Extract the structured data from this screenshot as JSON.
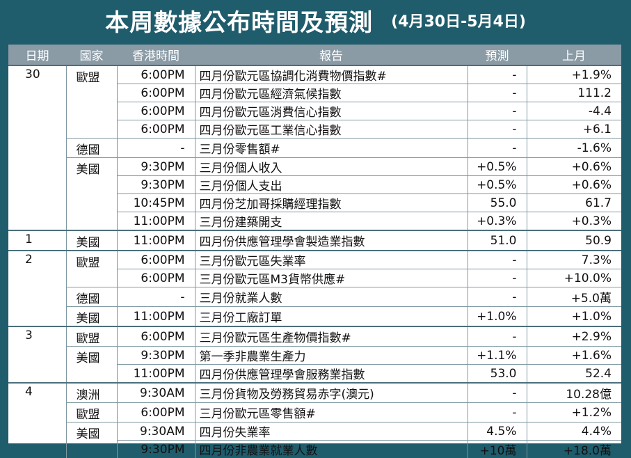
{
  "header": {
    "title": "本周數據公布時間及預測",
    "subtitle": "(4月30日-5月4日)"
  },
  "table": {
    "columns": [
      "日期",
      "國家",
      "香港時間",
      "報告",
      "預測",
      "上月"
    ],
    "rows": [
      [
        "30",
        "歐盟",
        "6:00PM",
        "四月份歐元區協調化消費物價指數#",
        "-",
        "+1.9%"
      ],
      [
        null,
        null,
        "6:00PM",
        "四月份歐元區經濟氣候指數",
        "-",
        "111.2"
      ],
      [
        null,
        null,
        "6:00PM",
        "四月份歐元區消費信心指數",
        "-",
        "-4.4"
      ],
      [
        null,
        null,
        "6:00PM",
        "四月份歐元區工業信心指數",
        "-",
        "+6.1"
      ],
      [
        null,
        "德國",
        "-",
        "三月份零售額#",
        "-",
        "-1.6%"
      ],
      [
        null,
        "美國",
        "9:30PM",
        "三月份個人收入",
        "+0.5%",
        "+0.6%"
      ],
      [
        null,
        null,
        "9:30PM",
        "三月份個人支出",
        "+0.5%",
        "+0.6%"
      ],
      [
        null,
        null,
        "10:45PM",
        "四月份芝加哥採購經理指數",
        "55.0",
        "61.7"
      ],
      [
        null,
        null,
        "11:00PM",
        "三月份建築開支",
        "+0.3%",
        "+0.3%"
      ],
      [
        "1",
        "美國",
        "11:00PM",
        "四月份供應管理學會製造業指數",
        "51.0",
        "50.9"
      ],
      [
        "2",
        "歐盟",
        "6:00PM",
        "三月份歐元區失業率",
        "-",
        "7.3%"
      ],
      [
        null,
        null,
        "6:00PM",
        "三月份歐元區M3貨幣供應#",
        "-",
        "+10.0%"
      ],
      [
        null,
        "德國",
        "-",
        "三月份就業人數",
        "-",
        "+5.0萬"
      ],
      [
        null,
        "美國",
        "11:00PM",
        "三月份工廠訂單",
        "+1.0%",
        "+1.0%"
      ],
      [
        "3",
        "歐盟",
        "6:00PM",
        "三月份歐元區生產物價指數#",
        "-",
        "+2.9%"
      ],
      [
        null,
        "美國",
        "9:30PM",
        "第一季非農業生產力",
        "+1.1%",
        "+1.6%"
      ],
      [
        null,
        null,
        "11:00PM",
        "四月份供應管理學會服務業指數",
        "53.0",
        "52.4"
      ],
      [
        "4",
        "澳洲",
        "9:30AM",
        "三月份貨物及勞務貿易赤字(澳元)",
        "-",
        "10.28億"
      ],
      [
        null,
        "歐盟",
        "6:00PM",
        "三月份歐元區零售額#",
        "-",
        "+1.2%"
      ],
      [
        null,
        "美國",
        "9:30AM",
        "四月份失業率",
        "4.5%",
        "4.4%"
      ],
      [
        null,
        null,
        "9:30PM",
        "四月份非農業就業人數",
        "+10萬",
        "+18.0萬"
      ]
    ]
  }
}
